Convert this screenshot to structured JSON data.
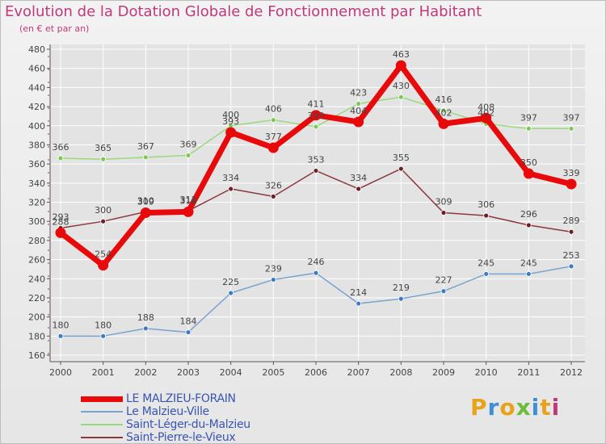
{
  "title": "Evolution de la Dotation Globale de Fonctionnement par Habitant",
  "subtitle": "(en € et par an)",
  "logo": {
    "text": "Proxiti"
  },
  "colors": {
    "title": "#c0397a",
    "legend_text": "#3a55b0",
    "axis": "#555555",
    "grid": "#ffffff"
  },
  "chart_data": {
    "type": "line",
    "x": [
      "2000",
      "2001",
      "2002",
      "2003",
      "2004",
      "2005",
      "2006",
      "2007",
      "2008",
      "2009",
      "2010",
      "2011",
      "2012"
    ],
    "ylim": [
      160,
      480
    ],
    "yticks": [
      160,
      180,
      200,
      220,
      240,
      260,
      280,
      300,
      320,
      340,
      360,
      380,
      400,
      420,
      440,
      460,
      480
    ],
    "grid": true,
    "legend_position": "bottom-left",
    "series": [
      {
        "name": "LE MALZIEU-FORAIN",
        "color": "#e8090b",
        "marker": "#e8090b",
        "width": 7,
        "radius": 6.5,
        "values": [
          288,
          254,
          309,
          310,
          393,
          377,
          411,
          404,
          463,
          402,
          408,
          350,
          339
        ]
      },
      {
        "name": "Le Malzieu-Ville",
        "color": "#7aa3cf",
        "marker": "#3d7cc4",
        "width": 1.5,
        "radius": 3,
        "values": [
          180,
          180,
          188,
          184,
          225,
          239,
          246,
          214,
          219,
          227,
          245,
          245,
          253
        ]
      },
      {
        "name": "Saint-Léger-du-Malzieu",
        "color": "#98d97e",
        "marker": "#7dc957",
        "width": 1.5,
        "radius": 3,
        "values": [
          366,
          365,
          367,
          369,
          400,
          406,
          399,
          423,
          430,
          416,
          402,
          397,
          397
        ]
      },
      {
        "name": "Saint-Pierre-le-Vieux",
        "color": "#8a3a3f",
        "marker": "#6b1f26",
        "width": 1.5,
        "radius": 3,
        "values": [
          293,
          300,
          310,
          311,
          334,
          326,
          353,
          334,
          355,
          309,
          306,
          296,
          289
        ]
      }
    ]
  }
}
